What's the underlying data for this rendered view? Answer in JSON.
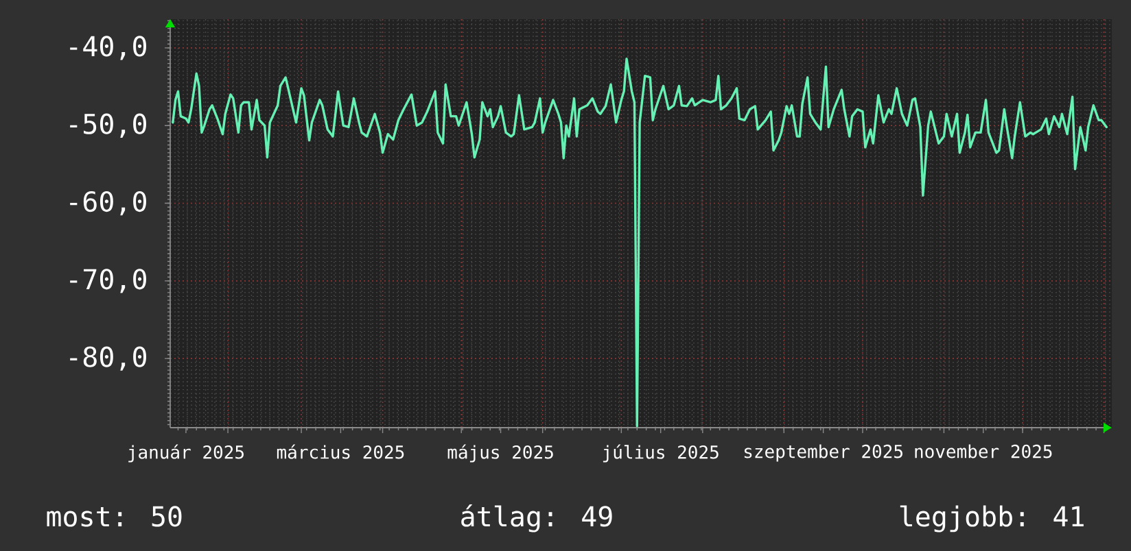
{
  "chart_data": {
    "type": "line",
    "xlim": [
      "2025-01-10",
      "2026-01-04"
    ],
    "ylim": [
      -88.9,
      -36.3
    ],
    "xticks": [
      {
        "value": "2025-01-16",
        "label": "január 2025"
      },
      {
        "value": "2025-02-01",
        "label": null
      },
      {
        "value": "2025-03-01",
        "label": null
      },
      {
        "value": "2025-03-16",
        "label": "március 2025"
      },
      {
        "value": "2025-04-01",
        "label": null
      },
      {
        "value": "2025-05-01",
        "label": null
      },
      {
        "value": "2025-05-16",
        "label": "május 2025"
      },
      {
        "value": "2025-06-01",
        "label": null
      },
      {
        "value": "2025-07-01",
        "label": null
      },
      {
        "value": "2025-07-16",
        "label": "július 2025"
      },
      {
        "value": "2025-08-01",
        "label": null
      },
      {
        "value": "2025-09-01",
        "label": null
      },
      {
        "value": "2025-09-16",
        "label": "szeptember 2025"
      },
      {
        "value": "2025-10-01",
        "label": null
      },
      {
        "value": "2025-11-01",
        "label": null
      },
      {
        "value": "2025-11-16",
        "label": "november 2025"
      },
      {
        "value": "2025-12-01",
        "label": null
      },
      {
        "value": "2026-01-01",
        "label": null
      }
    ],
    "yticks": [
      {
        "value": -80,
        "label": "-80,0"
      },
      {
        "value": -70,
        "label": "-70,0"
      },
      {
        "value": -60,
        "label": "-60,0"
      },
      {
        "value": -50,
        "label": "-50,0"
      },
      {
        "value": -40,
        "label": "-40,0"
      }
    ],
    "grid": true,
    "color": "#66f0b4",
    "x": [
      "2025-01-11",
      "2025-01-12",
      "2025-01-13",
      "2025-01-14",
      "2025-01-16",
      "2025-01-17",
      "2025-01-18",
      "2025-01-20",
      "2025-01-21",
      "2025-01-22",
      "2025-01-23",
      "2025-01-25",
      "2025-01-26",
      "2025-01-28",
      "2025-01-30",
      "2025-01-31",
      "2025-02-02",
      "2025-02-03",
      "2025-02-05",
      "2025-02-06",
      "2025-02-07",
      "2025-02-09",
      "2025-02-10",
      "2025-02-12",
      "2025-02-13",
      "2025-02-15",
      "2025-02-16",
      "2025-02-17",
      "2025-02-20",
      "2025-02-21",
      "2025-02-23",
      "2025-02-25",
      "2025-02-27",
      "2025-03-01",
      "2025-03-02",
      "2025-03-04",
      "2025-03-05",
      "2025-03-08",
      "2025-03-09",
      "2025-03-11",
      "2025-03-13",
      "2025-03-15",
      "2025-03-17",
      "2025-03-19",
      "2025-03-21",
      "2025-03-23",
      "2025-03-24",
      "2025-03-26",
      "2025-03-29",
      "2025-03-31",
      "2025-04-01",
      "2025-04-03",
      "2025-04-05",
      "2025-04-07",
      "2025-04-09",
      "2025-04-12",
      "2025-04-14",
      "2025-04-16",
      "2025-04-18",
      "2025-04-21",
      "2025-04-22",
      "2025-04-24",
      "2025-04-25",
      "2025-04-27",
      "2025-04-29",
      "2025-04-30",
      "2025-05-03",
      "2025-05-05",
      "2025-05-06",
      "2025-05-08",
      "2025-05-09",
      "2025-05-11",
      "2025-05-12",
      "2025-05-13",
      "2025-05-15",
      "2025-05-16",
      "2025-05-18",
      "2025-05-20",
      "2025-05-21",
      "2025-05-23",
      "2025-05-25",
      "2025-05-28",
      "2025-05-29",
      "2025-05-31",
      "2025-06-01",
      "2025-06-02",
      "2025-06-05",
      "2025-06-07",
      "2025-06-08",
      "2025-06-09",
      "2025-06-10",
      "2025-06-11",
      "2025-06-13",
      "2025-06-14",
      "2025-06-15",
      "2025-06-18",
      "2025-06-20",
      "2025-06-22",
      "2025-06-23",
      "2025-06-25",
      "2025-06-27",
      "2025-06-29",
      "2025-07-01",
      "2025-07-02",
      "2025-07-03",
      "2025-07-05",
      "2025-07-06",
      "2025-07-07",
      "2025-07-08",
      "2025-07-10",
      "2025-07-12",
      "2025-07-13",
      "2025-07-14",
      "2025-07-17",
      "2025-07-19",
      "2025-07-21",
      "2025-07-23",
      "2025-07-24",
      "2025-07-26",
      "2025-07-28",
      "2025-07-29",
      "2025-08-01",
      "2025-08-04",
      "2025-08-06",
      "2025-08-07",
      "2025-08-08",
      "2025-08-10",
      "2025-08-12",
      "2025-08-14",
      "2025-08-15",
      "2025-08-17",
      "2025-08-19",
      "2025-08-21",
      "2025-08-22",
      "2025-08-25",
      "2025-08-27",
      "2025-08-28",
      "2025-08-30",
      "2025-08-31",
      "2025-09-02",
      "2025-09-03",
      "2025-09-04",
      "2025-09-06",
      "2025-09-07",
      "2025-09-08",
      "2025-09-10",
      "2025-09-11",
      "2025-09-13",
      "2025-09-15",
      "2025-09-17",
      "2025-09-18",
      "2025-09-20",
      "2025-09-23",
      "2025-09-24",
      "2025-09-26",
      "2025-09-27",
      "2025-09-29",
      "2025-10-01",
      "2025-10-02",
      "2025-10-04",
      "2025-10-05",
      "2025-10-07",
      "2025-10-09",
      "2025-10-11",
      "2025-10-12",
      "2025-10-14",
      "2025-10-16",
      "2025-10-18",
      "2025-10-20",
      "2025-10-21",
      "2025-10-23",
      "2025-10-24",
      "2025-10-26",
      "2025-10-27",
      "2025-10-30",
      "2025-11-01",
      "2025-11-02",
      "2025-11-04",
      "2025-11-06",
      "2025-11-07",
      "2025-11-09",
      "2025-11-10",
      "2025-11-11",
      "2025-11-13",
      "2025-11-15",
      "2025-11-17",
      "2025-11-18",
      "2025-11-21",
      "2025-11-22",
      "2025-11-24",
      "2025-11-25",
      "2025-11-27",
      "2025-11-28",
      "2025-11-30",
      "2025-12-02",
      "2025-12-04",
      "2025-12-05",
      "2025-12-08",
      "2025-12-10",
      "2025-12-11",
      "2025-12-13",
      "2025-12-15",
      "2025-12-16",
      "2025-12-18",
      "2025-12-20",
      "2025-12-21",
      "2025-12-23",
      "2025-12-25",
      "2025-12-26",
      "2025-12-28",
      "2025-12-30",
      "2025-12-31",
      "2026-01-02"
    ],
    "values": [
      -49.6,
      -46.7,
      -45.6,
      -48.8,
      -49.1,
      -49.6,
      -47.9,
      -43.3,
      -44.9,
      -50.9,
      -50.0,
      -47.9,
      -47.4,
      -49.1,
      -51.1,
      -48.5,
      -46.0,
      -46.5,
      -50.9,
      -47.4,
      -47.0,
      -47.0,
      -50.5,
      -46.7,
      -49.3,
      -50.0,
      -54.1,
      -49.6,
      -47.4,
      -44.9,
      -43.8,
      -46.7,
      -49.6,
      -45.2,
      -46.1,
      -51.9,
      -49.6,
      -46.7,
      -47.4,
      -50.5,
      -51.4,
      -45.6,
      -50.0,
      -50.2,
      -46.5,
      -49.6,
      -50.9,
      -51.4,
      -48.5,
      -50.9,
      -53.5,
      -51.1,
      -51.8,
      -49.3,
      -47.9,
      -46.0,
      -50.0,
      -49.6,
      -48.2,
      -45.6,
      -50.9,
      -52.3,
      -44.7,
      -48.8,
      -48.8,
      -50.0,
      -47.0,
      -51.1,
      -54.1,
      -51.8,
      -47.0,
      -48.8,
      -47.9,
      -50.2,
      -48.8,
      -47.5,
      -50.9,
      -51.4,
      -51.1,
      -46.1,
      -50.5,
      -50.2,
      -49.6,
      -46.5,
      -50.9,
      -49.6,
      -46.7,
      -48.5,
      -49.6,
      -54.2,
      -50.0,
      -51.4,
      -46.5,
      -51.4,
      -47.9,
      -47.4,
      -46.5,
      -48.2,
      -48.5,
      -47.5,
      -44.7,
      -49.6,
      -46.7,
      -45.6,
      -41.4,
      -45.6,
      -47.0,
      -88.7,
      -49.6,
      -43.6,
      -43.8,
      -49.3,
      -47.9,
      -44.9,
      -47.9,
      -47.4,
      -44.9,
      -47.4,
      -47.5,
      -46.5,
      -47.4,
      -46.7,
      -47.0,
      -46.7,
      -43.6,
      -47.9,
      -47.4,
      -46.5,
      -45.2,
      -49.1,
      -49.3,
      -47.9,
      -47.5,
      -50.5,
      -49.3,
      -48.2,
      -53.2,
      -51.9,
      -50.9,
      -47.5,
      -48.5,
      -47.4,
      -51.4,
      -51.4,
      -47.2,
      -43.8,
      -48.5,
      -49.6,
      -50.5,
      -42.4,
      -50.2,
      -47.9,
      -45.4,
      -47.9,
      -51.4,
      -48.8,
      -47.9,
      -48.2,
      -52.8,
      -50.5,
      -52.3,
      -46.1,
      -49.6,
      -47.9,
      -48.5,
      -45.2,
      -48.5,
      -50.0,
      -46.7,
      -46.5,
      -50.2,
      -59.0,
      -50.0,
      -48.2,
      -52.3,
      -51.4,
      -48.5,
      -51.4,
      -48.5,
      -53.5,
      -50.9,
      -48.6,
      -52.8,
      -50.9,
      -50.9,
      -46.7,
      -50.9,
      -53.5,
      -53.2,
      -47.9,
      -50.2,
      -54.2,
      -51.4,
      -47.0,
      -51.4,
      -50.9,
      -51.1,
      -50.5,
      -49.1,
      -51.1,
      -48.8,
      -50.2,
      -48.5,
      -51.1,
      -46.3,
      -55.6,
      -50.2,
      -53.2,
      -50.2,
      -47.4,
      -49.3,
      -49.3,
      -50.2
    ],
    "annotations": [
      "most: 50",
      "átlag: 49",
      "legjobb: 41"
    ]
  }
}
